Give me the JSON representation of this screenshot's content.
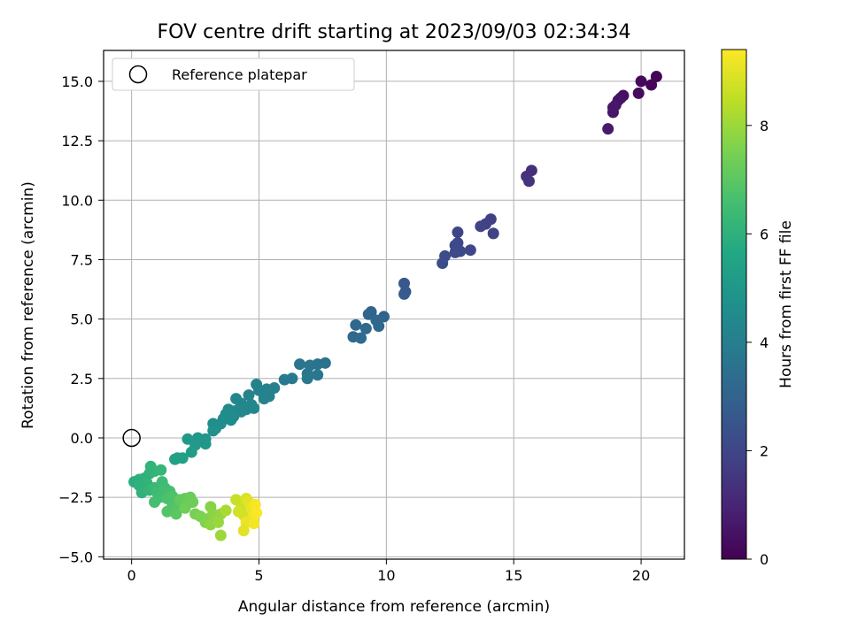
{
  "chart_data": {
    "type": "scatter",
    "title": "FOV centre drift starting at 2023/09/03 02:34:34",
    "xlabel": "Angular distance from reference (arcmin)",
    "ylabel": "Rotation from reference (arcmin)",
    "xlim": [
      -1.1,
      21.7
    ],
    "ylim": [
      -5.1,
      16.3
    ],
    "xticks": [
      0,
      5,
      10,
      15,
      20
    ],
    "yticks": [
      -5.0,
      -2.5,
      0.0,
      2.5,
      5.0,
      7.5,
      10.0,
      12.5,
      15.0
    ],
    "xtick_labels": [
      "0",
      "5",
      "10",
      "15",
      "20"
    ],
    "ytick_labels": [
      "−5.0",
      "−2.5",
      "0.0",
      "2.5",
      "5.0",
      "7.5",
      "10.0",
      "12.5",
      "15.0"
    ],
    "grid": true,
    "legend": {
      "placement": "upper-left",
      "entries": [
        {
          "label": "Reference platepar",
          "marker": "open-circle"
        }
      ],
      "reference_point": [
        0,
        0
      ]
    },
    "colorbar": {
      "label": "Hours from first FF file",
      "colormap": "viridis",
      "range": [
        0,
        9.4
      ],
      "ticks": [
        0,
        2,
        4,
        6,
        8
      ],
      "tick_labels": [
        "0",
        "2",
        "4",
        "6",
        "8"
      ]
    },
    "points": [
      {
        "x": 20.6,
        "y": 15.2,
        "c": 0.1
      },
      {
        "x": 20.0,
        "y": 15.0,
        "c": 0.2
      },
      {
        "x": 20.4,
        "y": 14.85,
        "c": 0.15
      },
      {
        "x": 19.9,
        "y": 14.5,
        "c": 0.3
      },
      {
        "x": 19.3,
        "y": 14.4,
        "c": 0.4
      },
      {
        "x": 19.2,
        "y": 14.3,
        "c": 0.45
      },
      {
        "x": 19.1,
        "y": 14.2,
        "c": 0.5
      },
      {
        "x": 19.0,
        "y": 14.0,
        "c": 0.55
      },
      {
        "x": 18.9,
        "y": 13.9,
        "c": 0.6
      },
      {
        "x": 18.9,
        "y": 13.7,
        "c": 0.6
      },
      {
        "x": 18.7,
        "y": 13.0,
        "c": 0.7
      },
      {
        "x": 15.7,
        "y": 11.25,
        "c": 1.3
      },
      {
        "x": 15.5,
        "y": 11.0,
        "c": 1.35
      },
      {
        "x": 15.6,
        "y": 10.8,
        "c": 1.4
      },
      {
        "x": 14.1,
        "y": 9.2,
        "c": 1.8
      },
      {
        "x": 13.9,
        "y": 9.0,
        "c": 1.85
      },
      {
        "x": 13.7,
        "y": 8.9,
        "c": 1.9
      },
      {
        "x": 14.2,
        "y": 8.6,
        "c": 1.85
      },
      {
        "x": 12.8,
        "y": 8.65,
        "c": 2.0
      },
      {
        "x": 12.8,
        "y": 8.2,
        "c": 2.05
      },
      {
        "x": 12.7,
        "y": 8.1,
        "c": 2.1
      },
      {
        "x": 12.9,
        "y": 7.85,
        "c": 2.1
      },
      {
        "x": 13.3,
        "y": 7.9,
        "c": 2.05
      },
      {
        "x": 12.7,
        "y": 7.8,
        "c": 2.15
      },
      {
        "x": 12.3,
        "y": 7.65,
        "c": 2.2
      },
      {
        "x": 12.2,
        "y": 7.35,
        "c": 2.25
      },
      {
        "x": 10.7,
        "y": 6.5,
        "c": 2.6
      },
      {
        "x": 10.75,
        "y": 6.15,
        "c": 2.65
      },
      {
        "x": 10.7,
        "y": 6.05,
        "c": 2.7
      },
      {
        "x": 9.4,
        "y": 5.3,
        "c": 3.0
      },
      {
        "x": 9.3,
        "y": 5.2,
        "c": 3.05
      },
      {
        "x": 9.9,
        "y": 5.1,
        "c": 3.0
      },
      {
        "x": 9.6,
        "y": 4.95,
        "c": 3.1
      },
      {
        "x": 8.8,
        "y": 4.75,
        "c": 3.15
      },
      {
        "x": 9.2,
        "y": 4.6,
        "c": 3.2
      },
      {
        "x": 9.7,
        "y": 4.7,
        "c": 3.15
      },
      {
        "x": 8.7,
        "y": 4.25,
        "c": 3.25
      },
      {
        "x": 9.0,
        "y": 4.2,
        "c": 3.3
      },
      {
        "x": 7.6,
        "y": 3.15,
        "c": 3.5
      },
      {
        "x": 7.3,
        "y": 3.1,
        "c": 3.55
      },
      {
        "x": 6.6,
        "y": 3.1,
        "c": 3.6
      },
      {
        "x": 7.0,
        "y": 3.05,
        "c": 3.6
      },
      {
        "x": 6.9,
        "y": 2.7,
        "c": 3.7
      },
      {
        "x": 7.3,
        "y": 2.65,
        "c": 3.7
      },
      {
        "x": 6.9,
        "y": 2.5,
        "c": 3.75
      },
      {
        "x": 6.3,
        "y": 2.5,
        "c": 3.8
      },
      {
        "x": 6.0,
        "y": 2.45,
        "c": 3.85
      },
      {
        "x": 4.9,
        "y": 2.25,
        "c": 4.1
      },
      {
        "x": 5.6,
        "y": 2.1,
        "c": 4.05
      },
      {
        "x": 5.3,
        "y": 2.05,
        "c": 4.1
      },
      {
        "x": 5.0,
        "y": 2.0,
        "c": 4.15
      },
      {
        "x": 4.6,
        "y": 1.8,
        "c": 4.2
      },
      {
        "x": 5.4,
        "y": 1.75,
        "c": 4.15
      },
      {
        "x": 5.2,
        "y": 1.65,
        "c": 4.2
      },
      {
        "x": 4.1,
        "y": 1.65,
        "c": 4.3
      },
      {
        "x": 4.3,
        "y": 1.45,
        "c": 4.3
      },
      {
        "x": 4.7,
        "y": 1.4,
        "c": 4.3
      },
      {
        "x": 4.5,
        "y": 1.2,
        "c": 4.35
      },
      {
        "x": 4.8,
        "y": 1.25,
        "c": 4.35
      },
      {
        "x": 4.1,
        "y": 1.15,
        "c": 4.4
      },
      {
        "x": 4.3,
        "y": 1.1,
        "c": 4.4
      },
      {
        "x": 3.8,
        "y": 1.2,
        "c": 4.45
      },
      {
        "x": 3.7,
        "y": 1.0,
        "c": 4.5
      },
      {
        "x": 4.0,
        "y": 0.9,
        "c": 4.5
      },
      {
        "x": 3.6,
        "y": 0.8,
        "c": 4.55
      },
      {
        "x": 3.9,
        "y": 0.75,
        "c": 4.55
      },
      {
        "x": 3.2,
        "y": 0.6,
        "c": 4.65
      },
      {
        "x": 3.5,
        "y": 0.6,
        "c": 4.6
      },
      {
        "x": 3.3,
        "y": 0.4,
        "c": 4.7
      },
      {
        "x": 3.2,
        "y": 0.3,
        "c": 4.75
      },
      {
        "x": 2.9,
        "y": -0.05,
        "c": 4.95
      },
      {
        "x": 2.6,
        "y": 0.0,
        "c": 5.0
      },
      {
        "x": 2.2,
        "y": -0.05,
        "c": 5.05
      },
      {
        "x": 2.5,
        "y": -0.3,
        "c": 5.1
      },
      {
        "x": 2.9,
        "y": -0.25,
        "c": 5.0
      },
      {
        "x": 2.35,
        "y": -0.6,
        "c": 5.2
      },
      {
        "x": 1.8,
        "y": -0.85,
        "c": 5.3
      },
      {
        "x": 2.0,
        "y": -0.85,
        "c": 5.3
      },
      {
        "x": 1.7,
        "y": -0.9,
        "c": 5.35
      },
      {
        "x": 0.1,
        "y": -1.85,
        "c": 5.9
      },
      {
        "x": 0.3,
        "y": -1.75,
        "c": 5.95
      },
      {
        "x": 0.5,
        "y": -1.7,
        "c": 6.0
      },
      {
        "x": 0.7,
        "y": -1.5,
        "c": 6.05
      },
      {
        "x": 0.75,
        "y": -1.2,
        "c": 6.1
      },
      {
        "x": 0.9,
        "y": -1.4,
        "c": 6.15
      },
      {
        "x": 1.15,
        "y": -1.35,
        "c": 6.2
      },
      {
        "x": 0.6,
        "y": -1.9,
        "c": 6.1
      },
      {
        "x": 0.3,
        "y": -2.0,
        "c": 6.0
      },
      {
        "x": 0.4,
        "y": -2.3,
        "c": 6.05
      },
      {
        "x": 0.7,
        "y": -2.2,
        "c": 6.2
      },
      {
        "x": 0.9,
        "y": -2.1,
        "c": 6.3
      },
      {
        "x": 1.0,
        "y": -2.3,
        "c": 6.4
      },
      {
        "x": 1.2,
        "y": -1.85,
        "c": 6.4
      },
      {
        "x": 1.3,
        "y": -2.1,
        "c": 6.5
      },
      {
        "x": 1.1,
        "y": -2.5,
        "c": 6.5
      },
      {
        "x": 0.9,
        "y": -2.7,
        "c": 6.6
      },
      {
        "x": 1.5,
        "y": -2.25,
        "c": 6.6
      },
      {
        "x": 1.4,
        "y": -2.55,
        "c": 6.7
      },
      {
        "x": 1.6,
        "y": -2.45,
        "c": 6.75
      },
      {
        "x": 1.6,
        "y": -2.85,
        "c": 6.8
      },
      {
        "x": 1.4,
        "y": -3.1,
        "c": 6.85
      },
      {
        "x": 1.75,
        "y": -3.0,
        "c": 6.9
      },
      {
        "x": 1.75,
        "y": -3.2,
        "c": 7.0
      },
      {
        "x": 1.9,
        "y": -2.6,
        "c": 7.1
      },
      {
        "x": 2.1,
        "y": -2.55,
        "c": 7.15
      },
      {
        "x": 2.2,
        "y": -2.75,
        "c": 7.2
      },
      {
        "x": 2.3,
        "y": -2.5,
        "c": 7.25
      },
      {
        "x": 2.4,
        "y": -2.7,
        "c": 7.3
      },
      {
        "x": 2.1,
        "y": -2.95,
        "c": 7.35
      },
      {
        "x": 2.5,
        "y": -3.2,
        "c": 7.45
      },
      {
        "x": 2.7,
        "y": -3.3,
        "c": 7.55
      },
      {
        "x": 2.9,
        "y": -3.55,
        "c": 7.6
      },
      {
        "x": 3.0,
        "y": -3.4,
        "c": 7.65
      },
      {
        "x": 3.1,
        "y": -2.9,
        "c": 7.7
      },
      {
        "x": 3.2,
        "y": -3.2,
        "c": 7.75
      },
      {
        "x": 3.3,
        "y": -3.45,
        "c": 7.8
      },
      {
        "x": 3.1,
        "y": -3.65,
        "c": 7.8
      },
      {
        "x": 3.5,
        "y": -3.2,
        "c": 7.9
      },
      {
        "x": 3.4,
        "y": -3.55,
        "c": 7.95
      },
      {
        "x": 3.5,
        "y": -4.1,
        "c": 8.0
      },
      {
        "x": 3.7,
        "y": -3.05,
        "c": 8.2
      },
      {
        "x": 4.1,
        "y": -2.6,
        "c": 8.6
      },
      {
        "x": 4.3,
        "y": -2.9,
        "c": 8.7
      },
      {
        "x": 4.2,
        "y": -3.1,
        "c": 8.75
      },
      {
        "x": 4.4,
        "y": -3.25,
        "c": 8.8
      },
      {
        "x": 4.5,
        "y": -2.55,
        "c": 8.9
      },
      {
        "x": 4.6,
        "y": -2.7,
        "c": 9.0
      },
      {
        "x": 4.7,
        "y": -2.9,
        "c": 9.05
      },
      {
        "x": 4.75,
        "y": -3.05,
        "c": 9.1
      },
      {
        "x": 4.8,
        "y": -3.25,
        "c": 9.15
      },
      {
        "x": 4.7,
        "y": -3.45,
        "c": 9.2
      },
      {
        "x": 4.5,
        "y": -3.55,
        "c": 9.1
      },
      {
        "x": 4.8,
        "y": -3.6,
        "c": 9.25
      },
      {
        "x": 4.4,
        "y": -3.9,
        "c": 9.0
      },
      {
        "x": 4.85,
        "y": -2.8,
        "c": 9.3
      },
      {
        "x": 4.9,
        "y": -3.15,
        "c": 9.35
      }
    ]
  }
}
